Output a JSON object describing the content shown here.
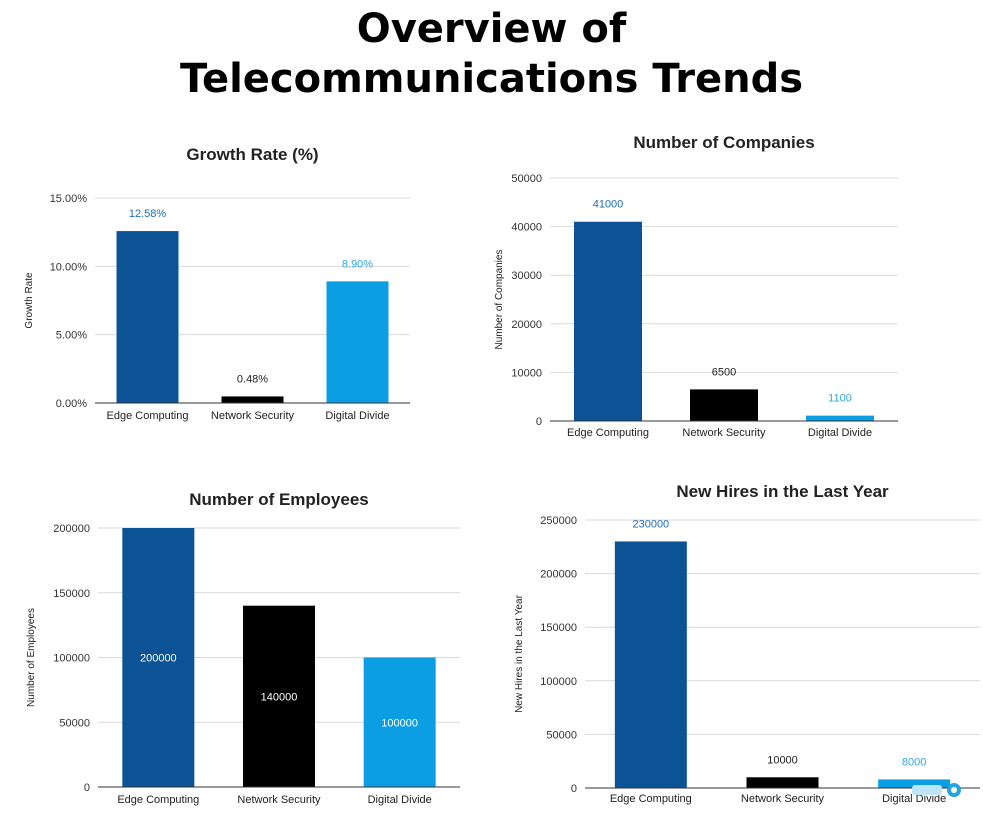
{
  "page": {
    "title_line1": "Overview of",
    "title_line2": "Telecommunications Trends"
  },
  "colors": {
    "edge": "#0b5394",
    "network": "#000000",
    "divide": "#0b9ee3",
    "edge_label": "#1f6eb5",
    "divide_label": "#2fa8e6"
  },
  "chart_data": [
    {
      "id": "growth",
      "type": "bar",
      "title": "Growth Rate (%)",
      "ylabel": "Growth Rate",
      "xlabel": "",
      "categories": [
        "Edge Computing",
        "Network Security",
        "Digital Divide"
      ],
      "values": [
        12.58,
        0.48,
        8.9
      ],
      "data_labels": [
        "12.58%",
        "0.48%",
        "8.90%"
      ],
      "ylim": [
        0,
        15
      ],
      "yticks": [
        0,
        5,
        10,
        15
      ],
      "ytick_labels": [
        "0.00%",
        "5.00%",
        "10.00%",
        "15.00%"
      ],
      "label_position": "above",
      "grid": true
    },
    {
      "id": "companies",
      "type": "bar",
      "title": "Number of Companies",
      "ylabel": "Number of Companies",
      "xlabel": "",
      "categories": [
        "Edge Computing",
        "Network Security",
        "Digital Divide"
      ],
      "values": [
        41000,
        6500,
        1100
      ],
      "data_labels": [
        "41000",
        "6500",
        "1100"
      ],
      "ylim": [
        0,
        50000
      ],
      "yticks": [
        0,
        10000,
        20000,
        30000,
        40000,
        50000
      ],
      "ytick_labels": [
        "0",
        "10000",
        "20000",
        "30000",
        "40000",
        "50000"
      ],
      "label_position": "above",
      "grid": true
    },
    {
      "id": "employees",
      "type": "bar",
      "title": "Number of Employees",
      "ylabel": "Number of Employees",
      "xlabel": "",
      "categories": [
        "Edge Computing",
        "Network Security",
        "Digital Divide"
      ],
      "values": [
        200000,
        140000,
        100000
      ],
      "data_labels": [
        "200000",
        "140000",
        "100000"
      ],
      "ylim": [
        0,
        200000
      ],
      "yticks": [
        0,
        50000,
        100000,
        150000,
        200000
      ],
      "ytick_labels": [
        "0",
        "50000",
        "100000",
        "150000",
        "200000"
      ],
      "label_position": "inside",
      "grid": true
    },
    {
      "id": "hires",
      "type": "bar",
      "title": "New Hires in the Last Year",
      "ylabel": "New Hires in the Last Year",
      "xlabel": "",
      "categories": [
        "Edge Computing",
        "Network Security",
        "Digital Divide"
      ],
      "values": [
        230000,
        10000,
        8000
      ],
      "data_labels": [
        "230000",
        "10000",
        "8000"
      ],
      "ylim": [
        0,
        250000
      ],
      "yticks": [
        0,
        50000,
        100000,
        150000,
        200000,
        250000
      ],
      "ytick_labels": [
        "0",
        "50000",
        "100000",
        "150000",
        "200000",
        "250000"
      ],
      "label_position": "above",
      "grid": true
    }
  ]
}
